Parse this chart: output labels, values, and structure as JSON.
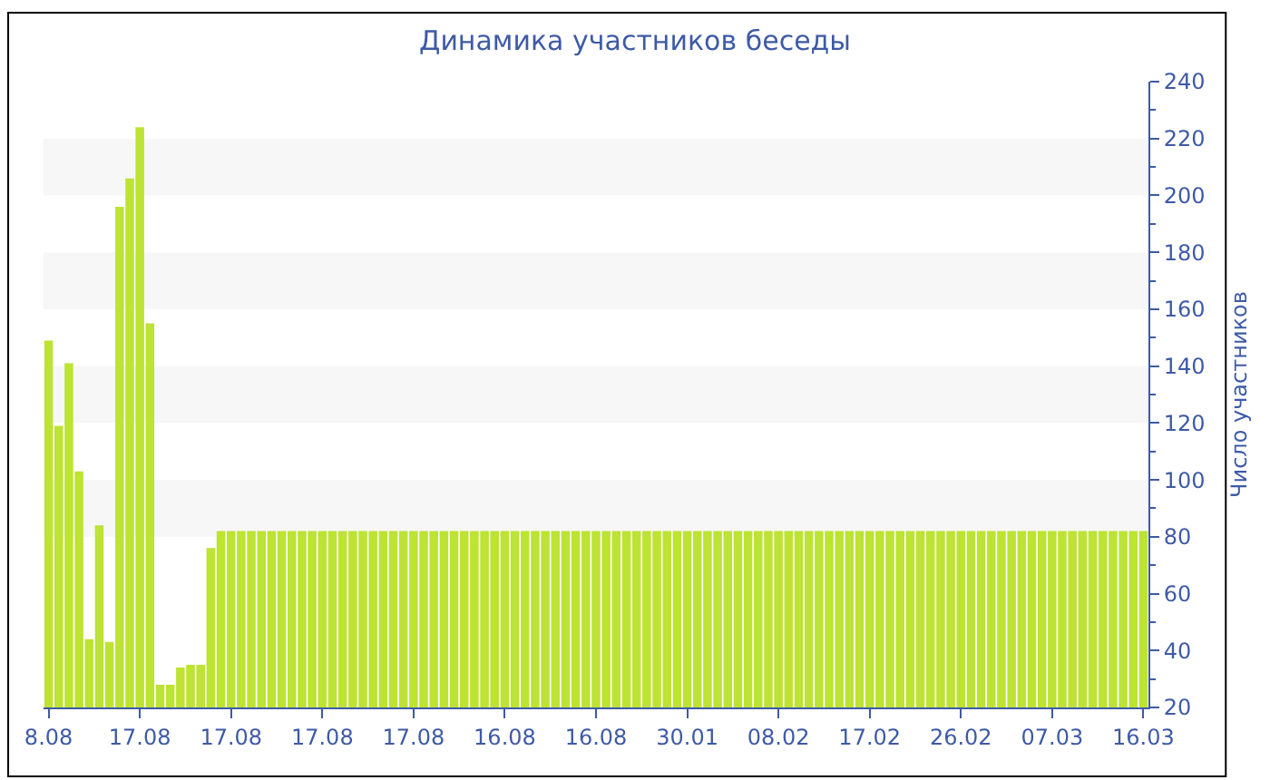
{
  "chart_data": {
    "type": "bar",
    "title": "Динамика участников беседы",
    "ylabel": "Число участников",
    "categories": [
      "8.08",
      null,
      null,
      null,
      null,
      null,
      null,
      null,
      null,
      "17.08",
      null,
      null,
      null,
      null,
      null,
      null,
      null,
      null,
      "17.08",
      null,
      null,
      null,
      null,
      null,
      null,
      null,
      null,
      "17.08",
      null,
      null,
      null,
      null,
      null,
      null,
      null,
      null,
      "17.08",
      null,
      null,
      null,
      null,
      null,
      null,
      null,
      null,
      "16.08",
      null,
      null,
      null,
      null,
      null,
      null,
      null,
      null,
      "16.08",
      null,
      null,
      null,
      null,
      null,
      null,
      null,
      null,
      "30.01",
      null,
      null,
      null,
      null,
      null,
      null,
      null,
      null,
      "08.02",
      null,
      null,
      null,
      null,
      null,
      null,
      null,
      null,
      "17.02",
      null,
      null,
      null,
      null,
      null,
      null,
      null,
      null,
      "26.02",
      null,
      null,
      null,
      null,
      null,
      null,
      null,
      null,
      "07.03",
      null,
      null,
      null,
      null,
      null,
      null,
      null,
      null,
      "16.03"
    ],
    "values": [
      149,
      119,
      141,
      103,
      44,
      84,
      43,
      196,
      206,
      224,
      155,
      28,
      28,
      34,
      35,
      35,
      76,
      82,
      82,
      82,
      82,
      82,
      82,
      82,
      82,
      82,
      82,
      82,
      82,
      82,
      82,
      82,
      82,
      82,
      82,
      82,
      82,
      82,
      82,
      82,
      82,
      82,
      82,
      82,
      82,
      82,
      82,
      82,
      82,
      82,
      82,
      82,
      82,
      82,
      82,
      82,
      82,
      82,
      82,
      82,
      82,
      82,
      82,
      82,
      82,
      82,
      82,
      82,
      82,
      82,
      82,
      82,
      82,
      82,
      82,
      82,
      82,
      82,
      82,
      82,
      82,
      82,
      82,
      82,
      82,
      82,
      82,
      82,
      82,
      82,
      82,
      82,
      82,
      82,
      82,
      82,
      82,
      82,
      82,
      82,
      82,
      82,
      82,
      82,
      82,
      82,
      82,
      82,
      82
    ],
    "color": "#bde333",
    "ylim": [
      20,
      240
    ],
    "yticks": [
      20,
      40,
      60,
      80,
      100,
      120,
      140,
      160,
      180,
      200,
      220,
      240
    ],
    "bands": [
      {
        "axis": "y",
        "from": 80,
        "to": 100,
        "color": "#f7f7f7"
      },
      {
        "axis": "y",
        "from": 120,
        "to": 140,
        "color": "#f7f7f7"
      },
      {
        "axis": "y",
        "from": 160,
        "to": 180,
        "color": "#f7f7f7"
      },
      {
        "axis": "y",
        "from": 200,
        "to": 220,
        "color": "#f7f7f7"
      }
    ],
    "grid": false,
    "legend": false
  }
}
